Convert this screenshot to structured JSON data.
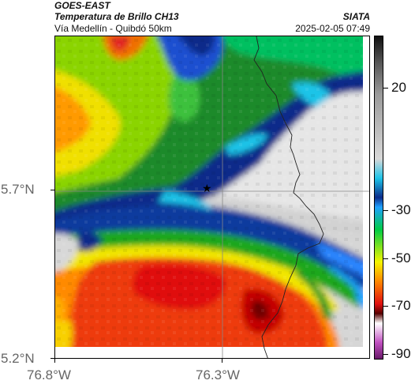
{
  "header": {
    "satellite": "GOES-EAST",
    "product": "Temperatura de Brillo CH13",
    "route": "Vía Medellín - Quibdó 50km",
    "agency": "SIATA",
    "timestamp": "2025-02-05 07:49"
  },
  "axes": {
    "lat_labels": [
      "5.7°N",
      "5.2°N"
    ],
    "lon_labels": [
      "76.8°W",
      "76.3°W"
    ]
  },
  "colorbar": {
    "labels": [
      "20",
      "-30",
      "-50",
      "-70",
      "-90"
    ],
    "stops": [
      {
        "c": "#111111",
        "p": 0
      },
      {
        "c": "#555555",
        "p": 8
      },
      {
        "c": "#9a9a9a",
        "p": 18
      },
      {
        "c": "#d8d8d8",
        "p": 38
      },
      {
        "c": "#1ec4e8",
        "p": 44
      },
      {
        "c": "#0b2b8a",
        "p": 50
      },
      {
        "c": "#1fa1ff",
        "p": 53
      },
      {
        "c": "#00cc44",
        "p": 60
      },
      {
        "c": "#f5f500",
        "p": 70
      },
      {
        "c": "#ff8800",
        "p": 76
      },
      {
        "c": "#e01010",
        "p": 83
      },
      {
        "c": "#550000",
        "p": 86
      },
      {
        "c": "#ffffff",
        "p": 89
      },
      {
        "c": "#c050c0",
        "p": 95
      },
      {
        "c": "#6a1a6a",
        "p": 100
      }
    ]
  },
  "marker": {
    "symbol": "★"
  }
}
